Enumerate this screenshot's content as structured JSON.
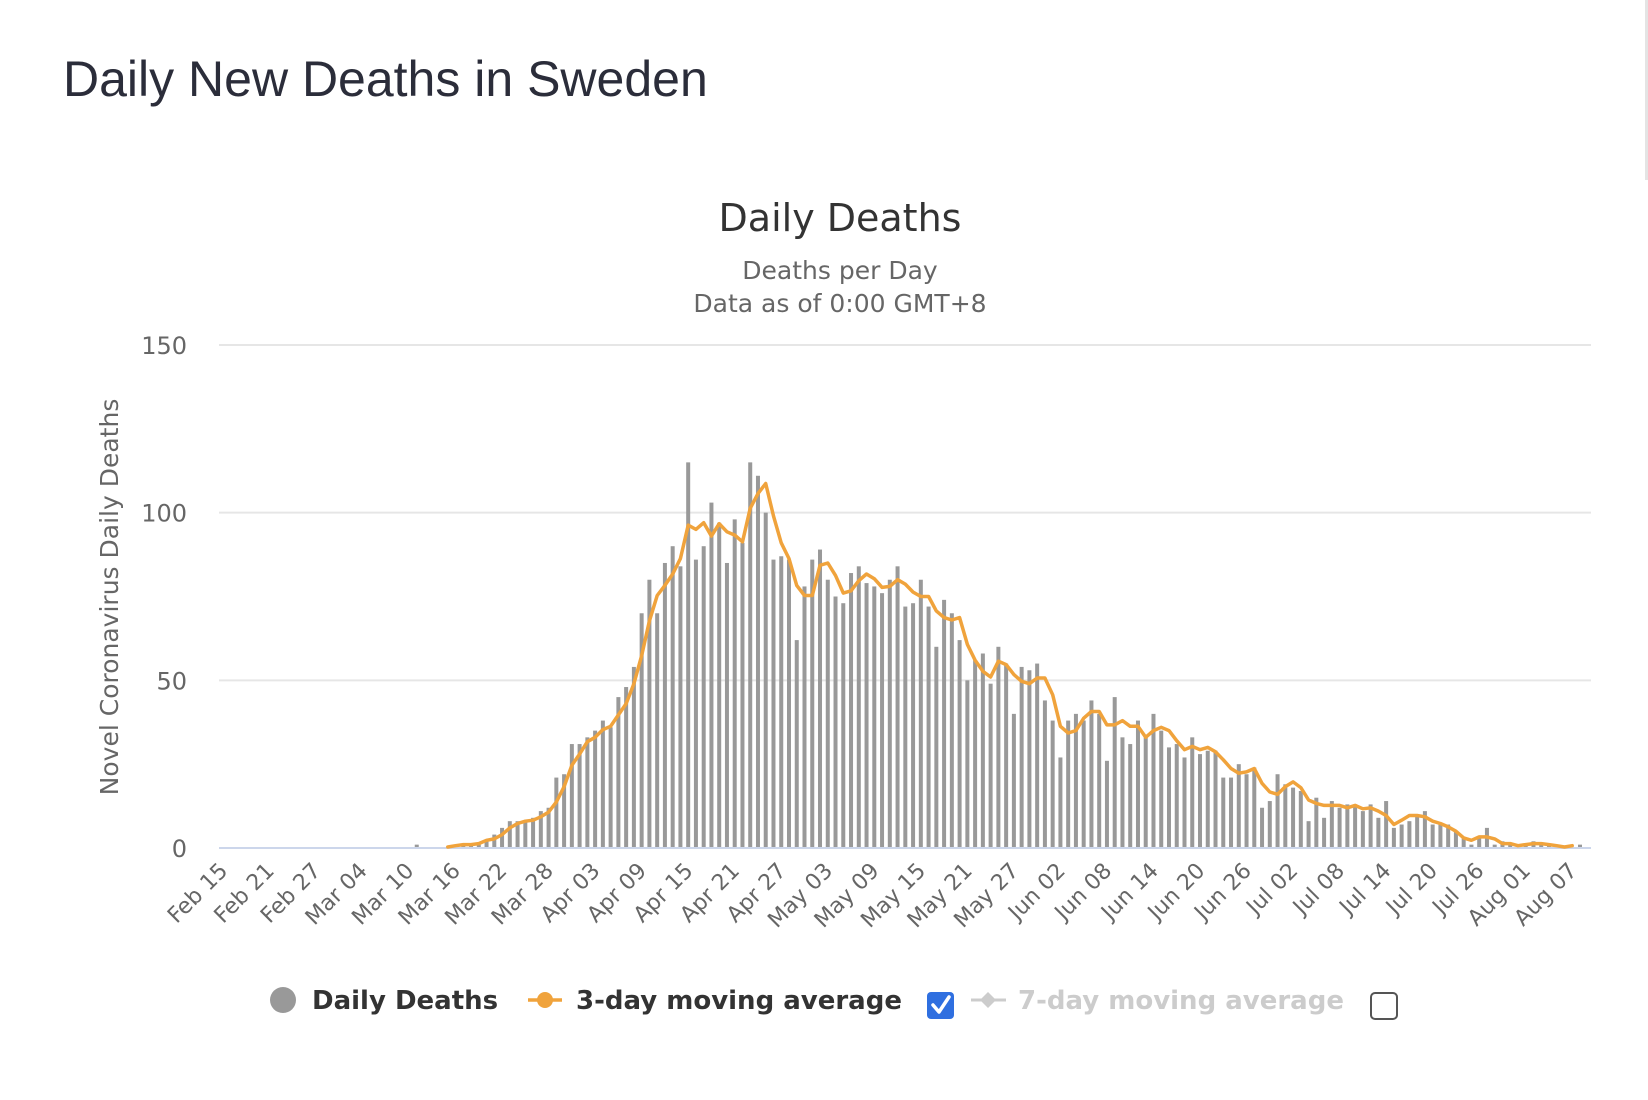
{
  "page": {
    "title": "Daily New Deaths in Sweden"
  },
  "chart_data": {
    "type": "bar",
    "title": "Daily Deaths",
    "subtitle_lines": [
      "Deaths per Day",
      "Data as of 0:00 GMT+8"
    ],
    "ylabel": "Novel Coronavirus Daily Deaths",
    "xlabel": "",
    "ylim": [
      0,
      150
    ],
    "yticks": [
      0,
      50,
      100,
      150
    ],
    "grid": true,
    "legend_position": "bottom-center",
    "x_start": "Feb 15",
    "x_tick_labels": [
      "Feb 15",
      "Feb 21",
      "Feb 27",
      "Mar 04",
      "Mar 10",
      "Mar 16",
      "Mar 22",
      "Mar 28",
      "Apr 03",
      "Apr 09",
      "Apr 15",
      "Apr 21",
      "Apr 27",
      "May 03",
      "May 09",
      "May 15",
      "May 21",
      "May 27",
      "Jun 02",
      "Jun 08",
      "Jun 14",
      "Jun 20",
      "Jun 26",
      "Jul 02",
      "Jul 08",
      "Jul 14",
      "Jul 20",
      "Jul 26",
      "Aug 01",
      "Aug 07"
    ],
    "colors": {
      "bars": "#999999",
      "moving_avg_3": "#f0a33c",
      "moving_avg_7_disabled": "#cccccc",
      "grid": "#e6e6e6",
      "axis_text": "#666666",
      "title": "#333333",
      "checkbox_checked": "#2f6fe0"
    },
    "series": [
      {
        "name": "Daily Deaths",
        "kind": "bar",
        "values": [
          0,
          0,
          0,
          0,
          0,
          0,
          0,
          0,
          0,
          0,
          0,
          0,
          0,
          0,
          0,
          0,
          0,
          0,
          0,
          0,
          0,
          0,
          0,
          0,
          0,
          1,
          0,
          0,
          0,
          0,
          1,
          1,
          1,
          1,
          2,
          4,
          6,
          8,
          8,
          8,
          9,
          11,
          12,
          21,
          22,
          31,
          31,
          33,
          35,
          38,
          36,
          45,
          48,
          54,
          70,
          80,
          70,
          85,
          90,
          84,
          115,
          86,
          90,
          103,
          97,
          85,
          98,
          91,
          115,
          111,
          100,
          86,
          87,
          86,
          62,
          78,
          86,
          89,
          80,
          75,
          73,
          82,
          84,
          79,
          78,
          76,
          80,
          84,
          72,
          73,
          80,
          72,
          60,
          74,
          70,
          62,
          50,
          56,
          58,
          49,
          60,
          55,
          40,
          54,
          53,
          55,
          44,
          38,
          27,
          38,
          40,
          38,
          44,
          40,
          26,
          45,
          33,
          31,
          38,
          33,
          40,
          35,
          30,
          31,
          27,
          33,
          28,
          29,
          29,
          21,
          21,
          25,
          22,
          24,
          12,
          14,
          22,
          19,
          18,
          17,
          8,
          15,
          9,
          14,
          12,
          13,
          13,
          11,
          13,
          9,
          14,
          6,
          7,
          8,
          10,
          11,
          7,
          7,
          7,
          5,
          3,
          1,
          3,
          6,
          1,
          2,
          1,
          0,
          1,
          2,
          1,
          1,
          1,
          0,
          0,
          1
        ]
      },
      {
        "name": "3-day moving average",
        "kind": "line",
        "values": [
          null,
          null,
          null,
          null,
          null,
          null,
          null,
          null,
          null,
          null,
          null,
          null,
          null,
          null,
          null,
          null,
          null,
          null,
          null,
          null,
          null,
          null,
          null,
          null,
          null,
          null,
          null,
          null,
          null,
          0.3,
          0.7,
          1,
          1,
          1.3,
          2.3,
          2.7,
          4,
          6,
          7.3,
          8,
          8.3,
          9.3,
          10.7,
          13.7,
          18.3,
          24.7,
          28,
          31.7,
          33,
          35.3,
          36.3,
          39.7,
          43,
          49,
          57.3,
          67.7,
          75.3,
          78.3,
          81.7,
          86.3,
          96.3,
          95,
          97,
          93,
          96.7,
          94.3,
          93.3,
          91.3,
          101.3,
          105.7,
          108.7,
          99,
          91,
          86.3,
          78.3,
          75.3,
          75.3,
          84.3,
          85,
          81.3,
          76,
          76.7,
          79.7,
          81.7,
          80.3,
          77.7,
          78,
          80,
          78.7,
          76.3,
          75,
          75,
          70.7,
          68.7,
          68,
          68.7,
          60.7,
          56,
          52.7,
          51,
          55.7,
          54.7,
          51.7,
          49.7,
          49,
          50.7,
          50.7,
          45.7,
          36.3,
          34.3,
          35,
          38.7,
          40.7,
          40.7,
          36.7,
          36.7,
          38,
          36.3,
          36.3,
          33,
          35,
          36,
          35,
          32,
          29.3,
          30.3,
          29.3,
          30,
          28.7,
          26.3,
          23.7,
          22.3,
          22.7,
          23.7,
          19.3,
          16.7,
          16,
          18.3,
          19.7,
          18,
          14.3,
          13.3,
          12.7,
          12.7,
          12.7,
          12,
          12.7,
          11.7,
          12,
          11,
          9.7,
          7,
          8.3,
          9.7,
          9.7,
          9.3,
          8,
          7.3,
          6.3,
          5,
          3,
          2.3,
          3.3,
          3.3,
          2.7,
          1.3,
          1.3,
          0.7,
          1,
          1.3,
          1.3,
          1,
          0.7,
          0.3,
          0.7
        ]
      }
    ],
    "legend": [
      {
        "label": "Daily Deaths",
        "icon": "gray-circle",
        "enabled": true
      },
      {
        "label": "3-day moving average",
        "icon": "orange-line-dot",
        "enabled": true,
        "checkbox_checked": true
      },
      {
        "label": "7-day moving average",
        "icon": "gray-line-diamond",
        "enabled": false,
        "checkbox_checked": false
      }
    ]
  }
}
